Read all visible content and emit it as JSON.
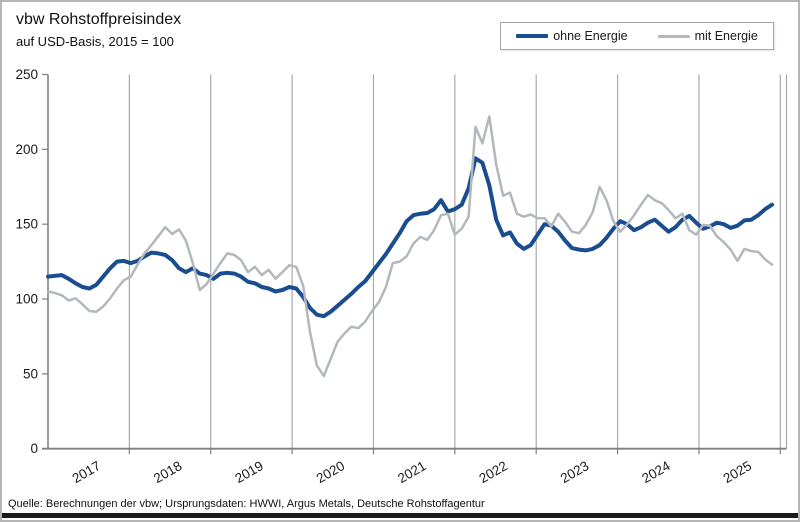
{
  "chart_data": {
    "type": "line",
    "title": "vbw Rohstoffpreisindex",
    "subtitle": "auf USD-Basis, 2015 = 100",
    "source": "Quelle: Berechnungen der vbw; Ursprungsdaten: HWWI, Argus Metals, Deutsche Rohstoffagentur",
    "x_unit": "month",
    "x_start": "2017-01",
    "x_end": "2025-10",
    "x_tick_labels": [
      "2017",
      "2018",
      "2019",
      "2020",
      "2021",
      "2022",
      "2023",
      "2024",
      "2025"
    ],
    "y_ticks": [
      0,
      50,
      100,
      150,
      200,
      250
    ],
    "ylim": [
      0,
      250
    ],
    "grid": "vertical year gridlines only",
    "legend_position": "top-right framed box",
    "colors": {
      "accent_bar": "#1a1a1a",
      "axis": "#808080",
      "gridline": "#a9a9a9"
    },
    "series": [
      {
        "name": "ohne Energie",
        "color": "#1a4d8f",
        "line_width": 4,
        "values": [
          115,
          115.5,
          116,
          113.5,
          110.5,
          108,
          107,
          109.5,
          115,
          120.5,
          125,
          125.5,
          124,
          125.5,
          128.5,
          131,
          130.5,
          129.5,
          126,
          120.5,
          118,
          120.5,
          117,
          116,
          113.5,
          117,
          117.5,
          117,
          115,
          111.5,
          110.5,
          108,
          107,
          105,
          106,
          108,
          107,
          101.5,
          94,
          89.5,
          88.5,
          91.5,
          95.5,
          99.5,
          103.5,
          108,
          112,
          118,
          124,
          130,
          137,
          144,
          152,
          156,
          157,
          157.5,
          160,
          166,
          158.5,
          160,
          163,
          174,
          194,
          191,
          176,
          153,
          142.5,
          144.5,
          137,
          133.5,
          136,
          143,
          150,
          149,
          145,
          139,
          134,
          133,
          132.5,
          133.5,
          136,
          141,
          147,
          152,
          150,
          146,
          148,
          151,
          153,
          149,
          145,
          148,
          153,
          155.5,
          151,
          147,
          148.5,
          151,
          150,
          147.5,
          149,
          152.5,
          153,
          156,
          160,
          163
        ]
      },
      {
        "name": "mit Energie",
        "color": "#b2b8bd",
        "line_width": 2.5,
        "values": [
          105,
          104,
          102.5,
          99,
          100.5,
          96.5,
          92,
          91.5,
          95,
          100.5,
          107,
          112.5,
          115,
          123,
          130.5,
          136,
          142,
          148,
          143.5,
          146.5,
          139,
          124,
          106,
          110,
          117,
          124,
          130.5,
          129.5,
          126,
          118,
          121.5,
          116,
          119.5,
          113.5,
          118,
          122.5,
          121.5,
          109,
          78,
          55.5,
          48.5,
          60,
          71.5,
          77,
          81.5,
          80.5,
          85,
          92,
          98,
          108,
          124,
          125,
          128.5,
          137,
          141.5,
          139.5,
          146,
          156,
          157,
          143,
          147,
          155,
          215,
          204,
          222,
          190,
          169,
          171,
          157,
          155,
          156.5,
          154,
          154,
          148.5,
          157,
          151.5,
          145,
          144,
          149.5,
          158,
          175,
          166,
          152,
          145,
          150,
          156,
          163,
          169.5,
          166,
          164,
          159.5,
          154,
          157,
          146,
          143,
          149.5,
          149,
          142,
          138,
          133,
          125.5,
          133.5,
          132,
          131.5,
          126.5,
          123
        ]
      }
    ]
  }
}
